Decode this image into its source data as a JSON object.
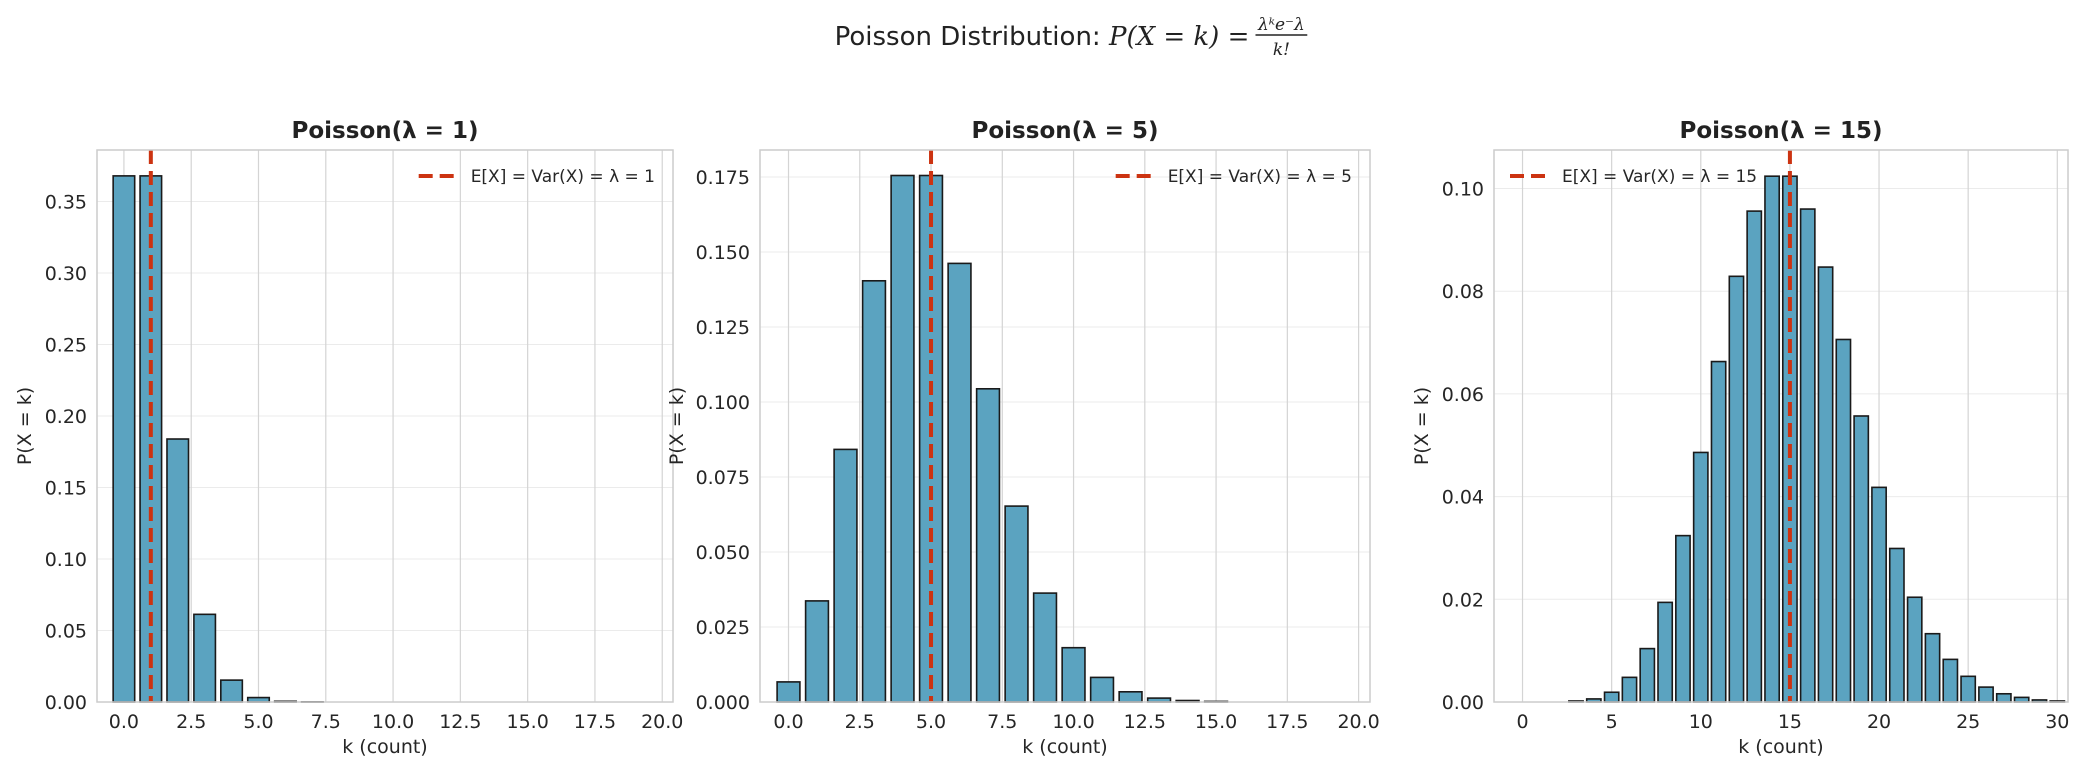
{
  "figure": {
    "title_prefix": "Poisson Distribution: ",
    "title_formula": "P(X = k) = λᵏe⁻ᵝ/k!",
    "title_lhs": "P(X = k) = ",
    "title_num": "λᵏe⁻λ",
    "title_den": "k!"
  },
  "colors": {
    "bar_fill": "#5ba3c0",
    "bar_edge": "#1a1a1a",
    "mean_line": "#cc3311",
    "grid": "#e6e6e6",
    "spine": "#cccccc"
  },
  "chart_data": [
    {
      "type": "bar",
      "title": "Poisson(λ = 1)",
      "xlabel": "k (count)",
      "ylabel": "P(X = k)",
      "xlim": [
        -1.0,
        20.4
      ],
      "ylim": [
        0,
        0.386
      ],
      "xticks": [
        0,
        2.5,
        5,
        7.5,
        10,
        12.5,
        15,
        17.5,
        20
      ],
      "xtick_labels": [
        "0.0",
        "2.5",
        "5.0",
        "7.5",
        "10.0",
        "12.5",
        "15.0",
        "17.5",
        "20.0"
      ],
      "yticks": [
        0,
        0.05,
        0.1,
        0.15,
        0.2,
        0.25,
        0.3,
        0.35
      ],
      "ytick_labels": [
        "0.00",
        "0.05",
        "0.10",
        "0.15",
        "0.20",
        "0.25",
        "0.30",
        "0.35"
      ],
      "k": [
        0,
        1,
        2,
        3,
        4,
        5,
        6,
        7,
        8,
        9,
        10,
        11,
        12,
        13,
        14,
        15,
        16,
        17,
        18,
        19,
        20
      ],
      "values": [
        0.3679,
        0.3679,
        0.1839,
        0.0613,
        0.0153,
        0.0031,
        0.0005,
        0.0001,
        0,
        0,
        0,
        0,
        0,
        0,
        0,
        0,
        0,
        0,
        0,
        0,
        0
      ],
      "mean_line": {
        "x": 1,
        "label": "E[X] = Var(X) = λ = 1"
      },
      "legend_position": "upper right"
    },
    {
      "type": "bar",
      "title": "Poisson(λ = 5)",
      "xlabel": "k (count)",
      "ylabel": "P(X = k)",
      "xlim": [
        -1.0,
        20.4
      ],
      "ylim": [
        0,
        0.184
      ],
      "xticks": [
        0,
        2.5,
        5,
        7.5,
        10,
        12.5,
        15,
        17.5,
        20
      ],
      "xtick_labels": [
        "0.0",
        "2.5",
        "5.0",
        "7.5",
        "10.0",
        "12.5",
        "15.0",
        "17.5",
        "20.0"
      ],
      "yticks": [
        0,
        0.025,
        0.05,
        0.075,
        0.1,
        0.125,
        0.15,
        0.175
      ],
      "ytick_labels": [
        "0.000",
        "0.025",
        "0.050",
        "0.075",
        "0.100",
        "0.125",
        "0.150",
        "0.175"
      ],
      "k": [
        0,
        1,
        2,
        3,
        4,
        5,
        6,
        7,
        8,
        9,
        10,
        11,
        12,
        13,
        14,
        15,
        16,
        17,
        18,
        19,
        20
      ],
      "values": [
        0.0067,
        0.0337,
        0.0842,
        0.1404,
        0.1755,
        0.1755,
        0.1462,
        0.1044,
        0.0653,
        0.0363,
        0.0181,
        0.0082,
        0.0034,
        0.0013,
        0.0005,
        0.0002,
        0.0,
        0,
        0,
        0,
        0
      ],
      "mean_line": {
        "x": 5,
        "label": "E[X] = Var(X) = λ = 5"
      },
      "legend_position": "upper right"
    },
    {
      "type": "bar",
      "title": "Poisson(λ = 15)",
      "xlabel": "k (count)",
      "ylabel": "P(X = k)",
      "xlim": [
        -1.6,
        30.6
      ],
      "ylim": [
        0,
        0.1075
      ],
      "xticks": [
        0,
        5,
        10,
        15,
        20,
        25,
        30
      ],
      "xtick_labels": [
        "0",
        "5",
        "10",
        "15",
        "20",
        "25",
        "30"
      ],
      "yticks": [
        0,
        0.02,
        0.04,
        0.06,
        0.08,
        0.1
      ],
      "ytick_labels": [
        "0.00",
        "0.02",
        "0.04",
        "0.06",
        "0.08",
        "0.10"
      ],
      "k": [
        0,
        1,
        2,
        3,
        4,
        5,
        6,
        7,
        8,
        9,
        10,
        11,
        12,
        13,
        14,
        15,
        16,
        17,
        18,
        19,
        20,
        21,
        22,
        23,
        24,
        25,
        26,
        27,
        28,
        29,
        30
      ],
      "values": [
        0.0,
        0.0,
        0.0,
        0.0002,
        0.0006,
        0.0019,
        0.0048,
        0.0104,
        0.0194,
        0.0324,
        0.0486,
        0.0663,
        0.0829,
        0.0956,
        0.1024,
        0.1024,
        0.096,
        0.0847,
        0.0706,
        0.0557,
        0.0418,
        0.0299,
        0.0204,
        0.0133,
        0.0083,
        0.005,
        0.0029,
        0.0016,
        0.0009,
        0.0004,
        0.0002
      ],
      "mean_line": {
        "x": 15,
        "label": "E[X] = Var(X) = λ = 15"
      },
      "legend_position": "upper left"
    }
  ]
}
